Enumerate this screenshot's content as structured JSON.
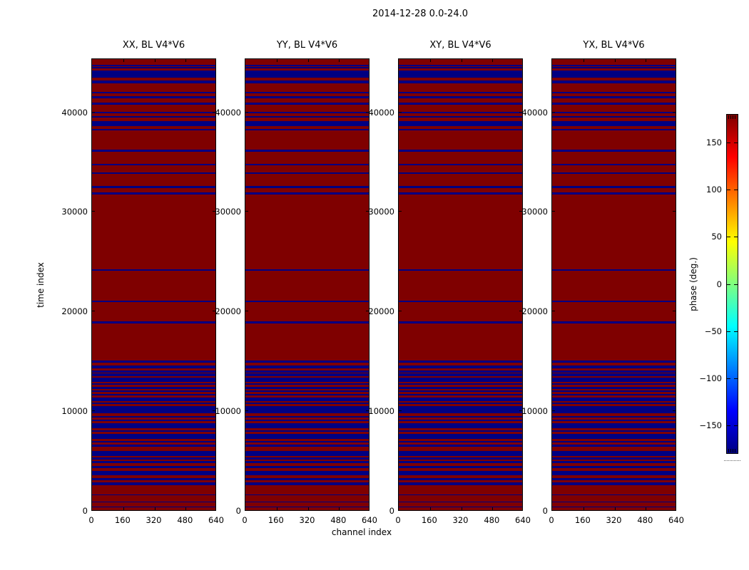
{
  "figure": {
    "title": "2014-12-28 0.0-24.0"
  },
  "colorbar": {
    "label": "phase (deg.)",
    "vmin": -180,
    "vmax": 180,
    "tick_labels": [
      "150",
      "100",
      "50",
      "0",
      "−50",
      "−100",
      "−150"
    ],
    "tick_values": [
      150,
      100,
      50,
      0,
      -50,
      -100,
      -150
    ],
    "colormap": "jet",
    "gradient_stops": [
      [
        "0%",
        "#7f0000"
      ],
      [
        "12.5%",
        "#ff0000"
      ],
      [
        "37.5%",
        "#ffff00"
      ],
      [
        "62.5%",
        "#00ffff"
      ],
      [
        "87.5%",
        "#0000ff"
      ],
      [
        "100%",
        "#000082"
      ]
    ]
  },
  "chart_data": {
    "type": "heatmap",
    "title": "2014-12-28 0.0-24.0",
    "xlabel": "channel index",
    "ylabel": "time index",
    "xlim": [
      0,
      640
    ],
    "ylim": [
      0,
      45400
    ],
    "x_ticks": [
      0,
      160,
      320,
      480,
      640
    ],
    "y_ticks": [
      0,
      10000,
      20000,
      30000,
      40000
    ],
    "colormap": "jet",
    "clim": [
      -180,
      180
    ],
    "legend_position": "right-colorbar",
    "grid": false,
    "panels": [
      {
        "title": "XX, BL V4*V6"
      },
      {
        "title": "YY, BL V4*V6"
      },
      {
        "title": "XY, BL V4*V6"
      },
      {
        "title": "YX, BL V4*V6"
      }
    ],
    "background_phase_deg": 180,
    "stripe_phase_deg": -180,
    "background_color": "#7f0000",
    "stripe_color": "#000082",
    "blue_stripes_time_ranges": [
      [
        44722,
        44865
      ],
      [
        44436,
        44608
      ],
      [
        43579,
        44293
      ],
      [
        43000,
        43290
      ],
      [
        42000,
        42145
      ],
      [
        41490,
        41710
      ],
      [
        40790,
        41070
      ],
      [
        40000,
        40140
      ],
      [
        39570,
        39715
      ],
      [
        38715,
        39215
      ],
      [
        38290,
        38430
      ],
      [
        36070,
        36290
      ],
      [
        34710,
        34860
      ],
      [
        33860,
        34070
      ],
      [
        32430,
        32650
      ],
      [
        31790,
        32000
      ],
      [
        24140,
        24290
      ],
      [
        21000,
        21140
      ],
      [
        18860,
        19070
      ],
      [
        14930,
        15140
      ],
      [
        14360,
        14640
      ],
      [
        13930,
        14140
      ],
      [
        13570,
        13860
      ],
      [
        13000,
        13430
      ],
      [
        12710,
        12860
      ],
      [
        12290,
        12500
      ],
      [
        12000,
        12140
      ],
      [
        11640,
        11790
      ],
      [
        11070,
        11430
      ],
      [
        10790,
        10930
      ],
      [
        9860,
        10570
      ],
      [
        9430,
        9570
      ],
      [
        9070,
        9210
      ],
      [
        8360,
        8860
      ],
      [
        8000,
        8140
      ],
      [
        7290,
        7790
      ],
      [
        6930,
        7070
      ],
      [
        6500,
        6710
      ],
      [
        5570,
        6070
      ],
      [
        5210,
        5430
      ],
      [
        4860,
        5070
      ],
      [
        4360,
        4570
      ],
      [
        3640,
        4070
      ],
      [
        3140,
        3360
      ],
      [
        2640,
        2930
      ],
      [
        1640,
        1710
      ],
      [
        930,
        1000
      ],
      [
        430,
        500
      ]
    ]
  }
}
